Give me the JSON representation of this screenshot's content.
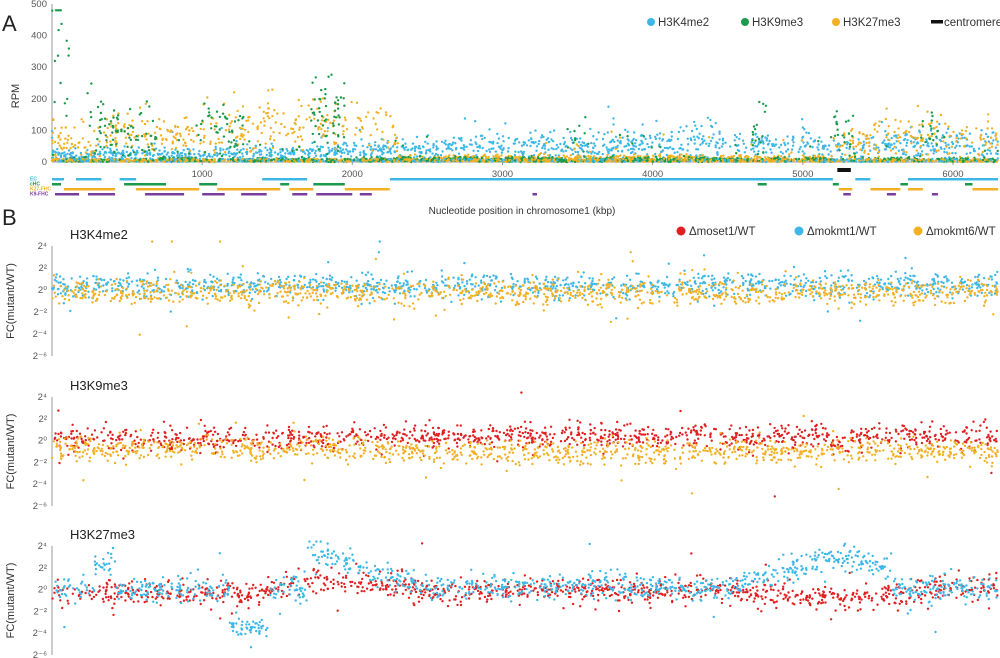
{
  "figure": {
    "panel_a_letter": "A",
    "panel_b_letter": "B",
    "xlabel": "Nucleotide position in chromosome1 (kbp)"
  },
  "chart_data": [
    {
      "type": "scatter",
      "panel": "A",
      "ylabel": "RPM",
      "xlim": [
        0,
        6300
      ],
      "ylim": [
        0,
        500
      ],
      "yticks": [
        0,
        100,
        200,
        300,
        400,
        500
      ],
      "xticks": [
        1000,
        2000,
        3000,
        4000,
        5000,
        6000
      ],
      "legend_position": "top-right",
      "series": [
        {
          "name": "H3K4me2",
          "color": "#3db8e6",
          "x": [
            200,
            500,
            900,
            1300,
            1700,
            2300,
            2600,
            2900,
            3200,
            3500,
            3800,
            4100,
            4400,
            4700,
            5000,
            5300,
            5600,
            5900,
            6200
          ],
          "y": [
            20,
            25,
            22,
            30,
            28,
            40,
            45,
            50,
            55,
            45,
            50,
            55,
            60,
            50,
            55,
            40,
            50,
            55,
            60
          ]
        },
        {
          "name": "H3K9me3",
          "color": "#1a9a4a",
          "x": [
            20,
            300,
            600,
            1050,
            1200,
            1800,
            1900,
            3500,
            4700,
            5200,
            5300,
            5850
          ],
          "y": [
            390,
            110,
            90,
            120,
            90,
            140,
            150,
            90,
            110,
            140,
            90,
            90
          ]
        },
        {
          "name": "H3K27me3",
          "color": "#f2b124",
          "x": [
            200,
            500,
            900,
            1200,
            1500,
            1700,
            2100,
            2500,
            3000,
            3500,
            4000,
            4500,
            5000,
            5500,
            6000
          ],
          "y": [
            60,
            90,
            80,
            100,
            120,
            110,
            120,
            15,
            15,
            15,
            15,
            15,
            15,
            80,
            70
          ]
        },
        {
          "name": "centromere",
          "color": "#111111",
          "x": [
            5230,
            5320
          ],
          "y": [
            0,
            0
          ]
        }
      ],
      "tracks": [
        {
          "label": "EC",
          "color": "#3db8e6",
          "segments": [
            [
              0,
              80
            ],
            [
              160,
              330
            ],
            [
              450,
              560
            ],
            [
              1400,
              1700
            ],
            [
              2250,
              5200
            ],
            [
              5350,
              5450
            ],
            [
              5700,
              6300
            ]
          ]
        },
        {
          "label": "cHC",
          "color": "#1a9a4a",
          "segments": [
            [
              0,
              60
            ],
            [
              480,
              760
            ],
            [
              980,
              1100
            ],
            [
              1520,
              1580
            ],
            [
              1740,
              1950
            ],
            [
              4700,
              4760
            ],
            [
              5200,
              5240
            ],
            [
              5650,
              5700
            ],
            [
              6080,
              6130
            ]
          ]
        },
        {
          "label": "K27-FHC",
          "color": "#f2b124",
          "segments": [
            [
              80,
              420
            ],
            [
              560,
              980
            ],
            [
              1100,
              1520
            ],
            [
              1580,
              1740
            ],
            [
              1950,
              2250
            ],
            [
              5240,
              5330
            ],
            [
              5450,
              5650
            ],
            [
              5700,
              5800
            ],
            [
              6130,
              6300
            ]
          ]
        },
        {
          "label": "K9-FHC",
          "color": "#7a3c9e",
          "segments": [
            [
              20,
              180
            ],
            [
              240,
              420
            ],
            [
              620,
              880
            ],
            [
              1000,
              1150
            ],
            [
              1260,
              1430
            ],
            [
              1600,
              1700
            ],
            [
              1760,
              2000
            ],
            [
              2050,
              2130
            ],
            [
              3200,
              3230
            ],
            [
              5270,
              5320
            ],
            [
              5560,
              5620
            ],
            [
              5860,
              5900
            ]
          ]
        }
      ]
    },
    {
      "type": "scatter",
      "panel": "B",
      "title": "H3K4me2",
      "ylabel": "FC(mutant/WT)",
      "yticks": [
        "2⁴",
        "2²",
        "2⁰",
        "2⁻²",
        "2⁻⁴",
        "2⁻⁶"
      ],
      "ylim_log2": [
        -6,
        4
      ],
      "legend_position": "top-right",
      "series": [
        {
          "name": "Δmoset1/WT",
          "color": "#e02020",
          "x": [],
          "y_log2": []
        },
        {
          "name": "Δmokmt1/WT",
          "color": "#3db8e6",
          "x": [
            500,
            1500,
            2500,
            3500,
            4500,
            5500,
            6200
          ],
          "y_log2": [
            0.3,
            0.4,
            0.5,
            0.4,
            0.5,
            0.4,
            0.6
          ]
        },
        {
          "name": "Δmokmt6/WT",
          "color": "#f2b124",
          "x": [
            500,
            1500,
            2500,
            3500,
            4500,
            5500,
            6200
          ],
          "y_log2": [
            -0.2,
            -0.1,
            -0.3,
            -0.2,
            -0.3,
            -0.2,
            -0.1
          ]
        }
      ]
    },
    {
      "type": "scatter",
      "panel": "B",
      "title": "H3K9me3",
      "ylabel": "FC(mutant/WT)",
      "yticks": [
        "2⁴",
        "2²",
        "2⁰",
        "2⁻²",
        "2⁻⁴",
        "2⁻⁶"
      ],
      "ylim_log2": [
        -6,
        4
      ],
      "series": [
        {
          "name": "Δmoset1/WT",
          "color": "#e02020",
          "x": [
            500,
            1500,
            2500,
            3500,
            4500,
            5500,
            6200
          ],
          "y_log2": [
            0.2,
            0.1,
            0.4,
            0.5,
            0.4,
            0.3,
            0.5
          ]
        },
        {
          "name": "Δmokmt6/WT",
          "color": "#f2b124",
          "x": [
            500,
            1500,
            2500,
            3500,
            4500,
            5500,
            6200
          ],
          "y_log2": [
            -0.8,
            -0.7,
            -1.0,
            -1.1,
            -1.0,
            -0.9,
            -1.0
          ]
        }
      ]
    },
    {
      "type": "scatter",
      "panel": "B",
      "title": "H3K27me3",
      "ylabel": "FC(mutant/WT)",
      "yticks": [
        "2⁴",
        "2²",
        "2⁰",
        "2⁻²",
        "2⁻⁴",
        "2⁻⁶"
      ],
      "ylim_log2": [
        -6,
        4
      ],
      "series": [
        {
          "name": "Δmoset1/WT",
          "color": "#e02020",
          "x": [
            500,
            1300,
            1750,
            2500,
            3500,
            4500,
            5300,
            6000
          ],
          "y_log2": [
            -0.3,
            -0.5,
            1.0,
            -0.2,
            0.0,
            -0.1,
            -0.8,
            0.1
          ]
        },
        {
          "name": "Δmokmt1/WT",
          "color": "#3db8e6",
          "x": [
            350,
            1300,
            1780,
            2500,
            3500,
            4500,
            5250,
            6000
          ],
          "y_log2": [
            2.5,
            -3.5,
            3.2,
            0.1,
            0.3,
            0.2,
            3.2,
            0.0
          ]
        }
      ]
    }
  ]
}
